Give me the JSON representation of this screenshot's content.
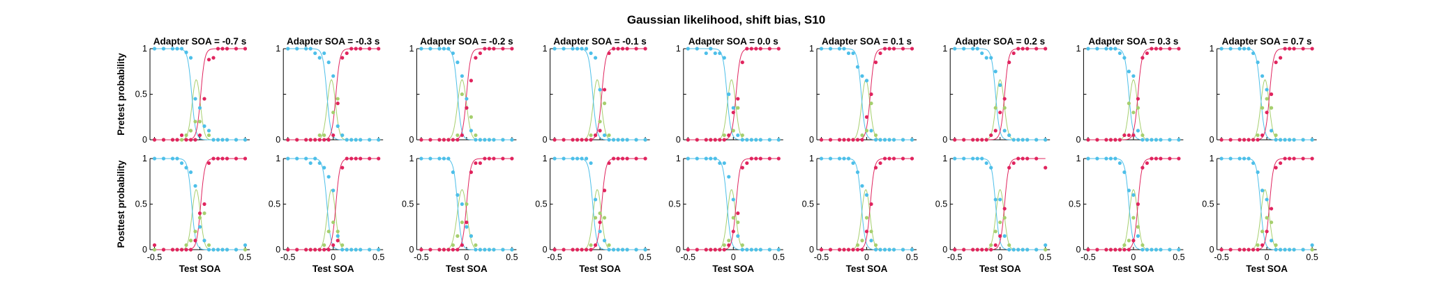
{
  "chart_data": {
    "type": "scatter",
    "title": "Gaussian likelihood, shift bias, S10",
    "xlabel": "Test SOA",
    "row_ylabels": [
      "Pretest probability",
      "Posttest probability"
    ],
    "xlim": [
      -0.55,
      0.55
    ],
    "ylim": [
      0,
      1
    ],
    "x_ticks": [
      -0.5,
      0,
      0.5
    ],
    "x_tick_labels": [
      "-0.5",
      "0",
      "0.5"
    ],
    "y_ticks": [
      0,
      0.5,
      1
    ],
    "y_tick_labels": [
      "0",
      "0.5",
      "1"
    ],
    "grid": false,
    "test_soa": [
      -0.5,
      -0.4,
      -0.3,
      -0.25,
      -0.2,
      -0.15,
      -0.1,
      -0.05,
      0,
      0.05,
      0.1,
      0.15,
      0.2,
      0.25,
      0.3,
      0.4,
      0.5
    ],
    "colors": {
      "blue": "#4dbfe9",
      "green": "#a6cf6e",
      "red": "#e0245e"
    },
    "columns": [
      {
        "title": "Adapter SOA = -0.7 s",
        "pre": {
          "mu": -0.04,
          "sigma": 0.06,
          "blue": [
            1,
            1,
            1,
            1,
            1,
            0.96,
            0.9,
            0.45,
            0.35,
            0.15,
            0.1,
            0,
            0,
            0,
            0,
            0,
            0
          ],
          "green": [
            0,
            0,
            0,
            0,
            0,
            0.05,
            0.1,
            0.2,
            0.2,
            0.45,
            0.05,
            0,
            0,
            0,
            0,
            0,
            0
          ],
          "red": [
            0,
            0,
            0,
            0,
            0.05,
            0,
            0,
            0,
            0.05,
            0.45,
            0.88,
            0.9,
            1,
            1,
            1,
            1,
            1
          ]
        },
        "post": {
          "mu": -0.04,
          "sigma": 0.06,
          "blue": [
            1,
            1,
            1,
            1,
            0.95,
            0.9,
            0.85,
            0.7,
            0.25,
            0.1,
            0,
            0,
            0,
            0,
            0,
            0,
            0.05
          ],
          "green": [
            0,
            0,
            0,
            0,
            0,
            0.05,
            0.1,
            0.2,
            0.35,
            0.4,
            0.05,
            0,
            0,
            0,
            0,
            0,
            0
          ],
          "red": [
            0.05,
            0,
            0,
            0,
            0,
            0,
            0,
            0.1,
            0.4,
            0.5,
            0.95,
            1,
            1,
            1,
            1,
            1,
            1
          ]
        }
      },
      {
        "title": "Adapter SOA = -0.3 s",
        "pre": {
          "mu": -0.02,
          "sigma": 0.06,
          "blue": [
            1,
            1,
            1,
            1,
            0.95,
            0.9,
            0.95,
            0.85,
            0.7,
            0.15,
            0.05,
            0,
            0,
            0,
            0,
            0,
            0
          ],
          "green": [
            0,
            0,
            0,
            0,
            0,
            0.05,
            0.05,
            0,
            0.3,
            0.45,
            0.05,
            0,
            0,
            0,
            0,
            0,
            0
          ],
          "red": [
            0,
            0,
            0,
            0,
            0,
            0,
            0,
            0,
            0.05,
            0.4,
            0.9,
            0.95,
            1,
            1,
            1,
            1,
            1
          ]
        },
        "post": {
          "mu": -0.02,
          "sigma": 0.06,
          "blue": [
            1,
            1,
            1,
            0.95,
            1,
            0.95,
            0.9,
            0.8,
            0.65,
            0.15,
            0,
            0,
            0,
            0,
            0,
            0,
            0
          ],
          "green": [
            0,
            0,
            0,
            0,
            0,
            0,
            0.05,
            0.2,
            0.3,
            0.2,
            0.05,
            0,
            0,
            0,
            0,
            0,
            0
          ],
          "red": [
            0,
            0,
            0,
            0,
            0,
            0,
            0,
            0,
            0.05,
            0.1,
            0.9,
            1,
            1,
            1,
            1,
            1,
            1
          ]
        }
      },
      {
        "title": "Adapter SOA = -0.2 s",
        "pre": {
          "mu": -0.05,
          "sigma": 0.065,
          "blue": [
            1,
            1,
            1,
            1,
            1,
            0.95,
            0.85,
            0.7,
            0.45,
            0.1,
            0,
            0,
            0,
            0,
            0,
            0,
            0
          ],
          "green": [
            0,
            0,
            0,
            0,
            0,
            0,
            0.05,
            0.5,
            0.35,
            0.25,
            0.05,
            0,
            0,
            0,
            0,
            0,
            0
          ],
          "red": [
            0,
            0,
            0,
            0,
            0,
            0,
            0,
            0.05,
            0.35,
            0.65,
            0.9,
            0.95,
            1,
            1,
            1,
            1,
            1
          ]
        },
        "post": {
          "mu": -0.05,
          "sigma": 0.07,
          "blue": [
            1,
            1,
            1,
            1,
            1,
            0.85,
            0.6,
            0.5,
            0.25,
            0.15,
            0,
            0,
            0,
            0,
            0,
            0,
            0
          ],
          "green": [
            0,
            0,
            0,
            0,
            0,
            0.05,
            0.15,
            0.3,
            0.5,
            0.15,
            0.05,
            0,
            0,
            0,
            0,
            0,
            0
          ],
          "red": [
            0,
            0,
            0,
            0,
            0,
            0,
            0,
            0.05,
            0.3,
            0.85,
            0.95,
            0.95,
            1,
            1,
            1,
            1,
            1
          ]
        }
      },
      {
        "title": "Adapter SOA = -0.1 s",
        "pre": {
          "mu": -0.03,
          "sigma": 0.06,
          "blue": [
            1,
            1,
            1,
            1,
            1,
            1,
            0.95,
            0.9,
            0.55,
            0.05,
            0,
            0,
            0,
            0,
            0,
            0,
            0
          ],
          "green": [
            0,
            0,
            0,
            0,
            0,
            0,
            0.05,
            0.05,
            0.2,
            0.4,
            0.05,
            0,
            0,
            0,
            0,
            0,
            0
          ],
          "red": [
            0,
            0,
            0,
            0,
            0,
            0,
            0,
            0.05,
            0.1,
            0.55,
            0.95,
            1,
            1,
            1,
            1,
            1,
            1
          ]
        },
        "post": {
          "mu": -0.03,
          "sigma": 0.06,
          "blue": [
            1,
            1,
            1,
            1,
            1,
            1,
            0.95,
            0.55,
            0.2,
            0.1,
            0,
            0,
            0,
            0,
            0,
            0,
            0
          ],
          "green": [
            0,
            0,
            0,
            0,
            0,
            0,
            0.05,
            0.35,
            0.4,
            0.35,
            0.05,
            0,
            0,
            0,
            0,
            0,
            0
          ],
          "red": [
            0,
            0,
            0,
            0,
            0,
            0,
            0,
            0.05,
            0.3,
            0.65,
            0.95,
            1,
            1,
            1,
            1,
            1,
            1
          ]
        }
      },
      {
        "title": "Adapter SOA = 0.0 s",
        "pre": {
          "mu": -0.02,
          "sigma": 0.06,
          "blue": [
            1,
            1,
            0.95,
            1,
            0.95,
            0.95,
            0.9,
            0.5,
            0.35,
            0.05,
            0,
            0,
            0,
            0,
            0,
            0,
            0
          ],
          "green": [
            0,
            0,
            0,
            0,
            0,
            0,
            0.05,
            0.05,
            0.1,
            0.35,
            0.05,
            0,
            0,
            0,
            0,
            0,
            0
          ],
          "red": [
            0,
            0,
            0,
            0,
            0,
            0,
            0,
            0.05,
            0.3,
            0.45,
            0.85,
            1,
            1,
            1,
            1,
            1,
            1
          ]
        },
        "post": {
          "mu": -0.02,
          "sigma": 0.06,
          "blue": [
            1,
            1,
            1,
            1,
            1,
            0.95,
            0.95,
            0.8,
            0.55,
            0.15,
            0,
            0,
            0,
            0,
            0,
            0,
            0
          ],
          "green": [
            0,
            0,
            0,
            0,
            0,
            0,
            0.05,
            0.1,
            0.35,
            0.3,
            0.05,
            0,
            0,
            0,
            0,
            0,
            0
          ],
          "red": [
            0,
            0,
            0,
            0,
            0,
            0,
            0,
            0.05,
            0.2,
            0.4,
            0.9,
            0.95,
            1,
            1,
            1,
            1,
            1
          ]
        }
      },
      {
        "title": "Adapter SOA = 0.1 s",
        "pre": {
          "mu": -0.01,
          "sigma": 0.06,
          "blue": [
            1,
            1,
            1,
            1,
            0.95,
            0.95,
            0.8,
            0.7,
            0.65,
            0.1,
            0,
            0,
            0,
            0,
            0,
            0,
            0
          ],
          "green": [
            0,
            0,
            0,
            0,
            0,
            0,
            0,
            0.05,
            0.1,
            0.4,
            0.05,
            0,
            0,
            0,
            0,
            0,
            0
          ],
          "red": [
            0,
            0,
            0,
            0,
            0,
            0,
            0,
            0,
            0.25,
            0.5,
            0.85,
            0.95,
            1,
            1,
            1,
            1,
            1
          ]
        },
        "post": {
          "mu": -0.01,
          "sigma": 0.06,
          "blue": [
            1,
            1,
            1,
            1,
            1,
            0.95,
            0.85,
            0.7,
            0.6,
            0.1,
            0,
            0,
            0,
            0,
            0,
            0,
            0
          ],
          "green": [
            0,
            0,
            0,
            0,
            0,
            0,
            0.05,
            0.1,
            0.35,
            0.2,
            0.05,
            0,
            0,
            0,
            0,
            0,
            0
          ],
          "red": [
            0,
            0,
            0,
            0,
            0,
            0,
            0,
            0,
            0.2,
            0.5,
            0.9,
            0.95,
            1,
            1,
            1,
            1,
            1
          ]
        }
      },
      {
        "title": "Adapter SOA = 0.2 s",
        "pre": {
          "mu": 0.0,
          "sigma": 0.06,
          "blue": [
            1,
            1,
            1,
            1,
            0.95,
            0.9,
            0.9,
            0.75,
            0.6,
            0.1,
            0.05,
            0,
            0,
            0,
            0,
            0,
            0
          ],
          "green": [
            0,
            0,
            0,
            0,
            0,
            0,
            0.05,
            0.35,
            0.6,
            0.35,
            0.05,
            0,
            0,
            0,
            0,
            0,
            0
          ],
          "red": [
            0,
            0,
            0,
            0,
            0,
            0,
            0.05,
            0.1,
            0.3,
            0.45,
            0.85,
            0.95,
            1,
            1,
            1,
            1,
            1
          ]
        },
        "post": {
          "mu": 0.0,
          "sigma": 0.06,
          "blue": [
            1,
            1,
            1,
            1,
            1,
            0.95,
            0.9,
            0.55,
            0.55,
            0.15,
            0,
            0,
            0,
            0,
            0,
            0,
            0.05
          ],
          "green": [
            0,
            0,
            0,
            0,
            0,
            0,
            0.05,
            0.2,
            0.3,
            0.35,
            0.05,
            0,
            0,
            0,
            0,
            0,
            0
          ],
          "red": [
            0,
            0,
            0,
            0,
            0,
            0,
            0,
            0.05,
            0.15,
            0.45,
            0.9,
            0.95,
            1,
            1,
            1,
            1,
            0.9
          ]
        }
      },
      {
        "title": "Adapter SOA = 0.3 s",
        "pre": {
          "mu": 0.0,
          "sigma": 0.06,
          "blue": [
            1,
            1,
            1,
            1,
            1,
            0.95,
            0.9,
            0.75,
            0.7,
            0.1,
            0,
            0,
            0,
            0,
            0,
            0,
            0
          ],
          "green": [
            0,
            0,
            0,
            0,
            0,
            0,
            0.05,
            0.4,
            0.3,
            0.35,
            0.05,
            0,
            0,
            0,
            0,
            0,
            0
          ],
          "red": [
            0,
            0,
            0,
            0,
            0,
            0,
            0.05,
            0.05,
            0.05,
            0.45,
            0.9,
            0.95,
            1,
            1,
            1,
            1,
            1
          ]
        },
        "post": {
          "mu": 0.0,
          "sigma": 0.06,
          "blue": [
            1,
            1,
            1,
            1,
            1,
            0.95,
            0.85,
            0.65,
            0.6,
            0.15,
            0,
            0,
            0,
            0,
            0,
            0,
            0
          ],
          "green": [
            0,
            0,
            0,
            0,
            0,
            0,
            0.05,
            0.1,
            0.35,
            0.25,
            0.05,
            0,
            0,
            0,
            0,
            0,
            0
          ],
          "red": [
            0,
            0,
            0,
            0,
            0,
            0,
            0,
            0,
            0.1,
            0.5,
            0.9,
            0.95,
            1,
            1,
            1,
            1,
            1
          ]
        }
      },
      {
        "title": "Adapter SOA = 0.7 s",
        "pre": {
          "mu": -0.02,
          "sigma": 0.06,
          "blue": [
            1,
            1,
            1,
            1,
            1,
            0.95,
            0.85,
            0.7,
            0.55,
            0.1,
            0,
            0,
            0,
            0,
            0,
            0,
            0
          ],
          "green": [
            0,
            0,
            0,
            0,
            0,
            0,
            0.05,
            0.35,
            0.45,
            0.35,
            0.05,
            0,
            0,
            0,
            0,
            0,
            0
          ],
          "red": [
            0,
            0,
            0,
            0,
            0,
            0,
            0,
            0.05,
            0.3,
            0.5,
            0.85,
            0.9,
            1,
            1,
            1,
            1,
            1
          ]
        },
        "post": {
          "mu": -0.02,
          "sigma": 0.06,
          "blue": [
            1,
            1,
            1,
            1,
            1,
            0.95,
            0.85,
            0.65,
            0.55,
            0.1,
            0,
            0,
            0,
            0,
            0,
            0,
            0.05
          ],
          "green": [
            0,
            0,
            0,
            0,
            0,
            0,
            0.05,
            0.2,
            0.35,
            0.3,
            0.05,
            0,
            0,
            0,
            0,
            0,
            0
          ],
          "red": [
            0,
            0,
            0,
            0,
            0,
            0,
            0,
            0.05,
            0.2,
            0.45,
            0.9,
            0.95,
            1,
            1,
            1,
            1,
            1
          ]
        }
      }
    ]
  }
}
